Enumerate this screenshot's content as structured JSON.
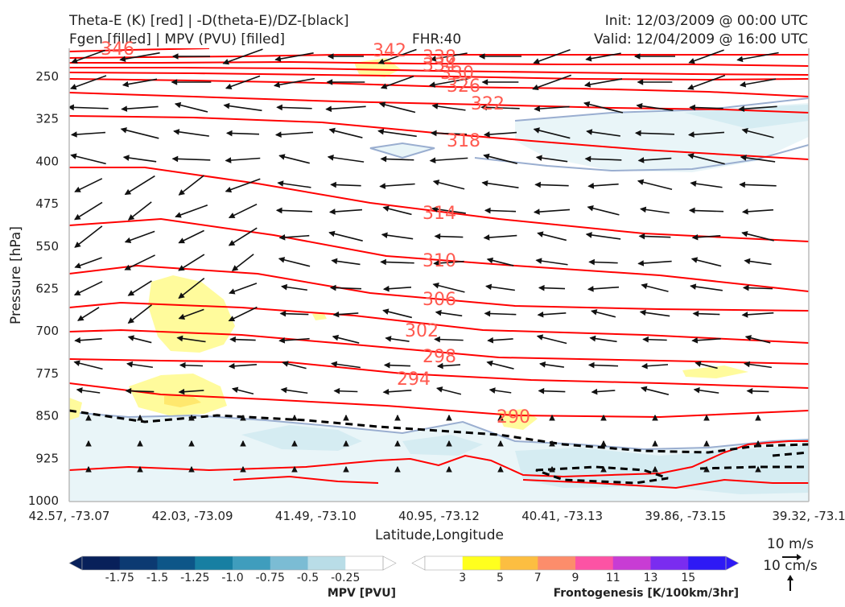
{
  "header": {
    "title_left_1": "Theta-E (K) [red] | -D(theta-E)/DZ-[black]",
    "title_left_2": "Fgen [filled] | MPV (PVU) [filled]",
    "fhr": "FHR:40",
    "init": "Init: 12/03/2009 @ 00:00 UTC",
    "valid": "Valid: 12/04/2009 @ 16:00 UTC"
  },
  "chart_data": {
    "type": "cross-section",
    "xlabel": "Latitude,Longitude",
    "ylabel": "Pressure [hPa]",
    "ylim": [
      1000,
      200
    ],
    "y_ticks": [
      "250",
      "325",
      "400",
      "475",
      "550",
      "625",
      "700",
      "775",
      "850",
      "925",
      "1000"
    ],
    "x_ticks": [
      "42.57, -73.07",
      "42.03, -73.09",
      "41.49, -73.10",
      "40.95, -73.12",
      "40.41, -73.13",
      "39.86, -73.15",
      "39.32, -73.1"
    ],
    "theta_e_contour_labels": [
      "346",
      "342",
      "338",
      "334",
      "330",
      "326",
      "322",
      "318",
      "314",
      "310",
      "306",
      "302",
      "298",
      "294",
      "290"
    ],
    "theta_e_color": "#ff0000",
    "vector_scale": {
      "horizontal": "10 m/s",
      "vertical": "10 cm/s"
    },
    "mpv_colorbar": {
      "label": "MPV [PVU]",
      "ticks": [
        "-1.75",
        "-1.5",
        "-1.25",
        "-1.0",
        "-0.75",
        "-0.5",
        "-0.25"
      ],
      "colors": [
        "#08205a",
        "#0c3a72",
        "#0d5688",
        "#177fa2",
        "#3f9dbd",
        "#7bbcd4",
        "#b9dde7",
        "#ffffff"
      ]
    },
    "fgen_colorbar": {
      "label": "Frontogenesis [K/100km/3hr]",
      "ticks": [
        "3",
        "5",
        "7",
        "9",
        "11",
        "13",
        "15"
      ],
      "colors": [
        "#ffffff",
        "#ffff1e",
        "#fcbe41",
        "#fc8d6b",
        "#fc53a4",
        "#c83cd4",
        "#7a2cf0",
        "#2e19f5"
      ]
    }
  }
}
